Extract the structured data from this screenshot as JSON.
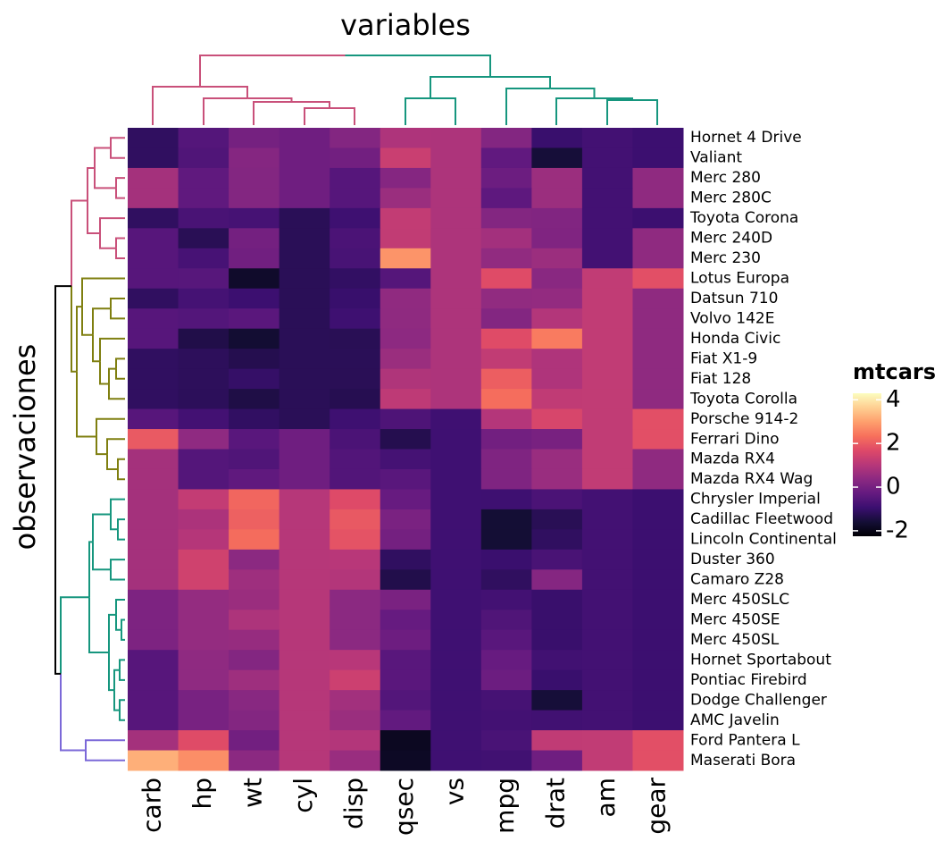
{
  "chart_data": {
    "type": "heatmap",
    "title": "variables",
    "y_label": "observaciones",
    "legend_title": "mtcars",
    "colormap": "magma",
    "x": [
      "carb",
      "hp",
      "wt",
      "cyl",
      "disp",
      "qsec",
      "vs",
      "mpg",
      "drat",
      "am",
      "gear"
    ],
    "y": [
      "Hornet 4 Drive",
      "Valiant",
      "Merc 280",
      "Merc 280C",
      "Toyota Corona",
      "Merc 240D",
      "Merc 230",
      "Lotus Europa",
      "Datsun 710",
      "Volvo 142E",
      "Honda Civic",
      "Fiat X1-9",
      "Fiat 128",
      "Toyota Corolla",
      "Porsche 914-2",
      "Ferrari Dino",
      "Mazda RX4",
      "Mazda RX4 Wag",
      "Chrysler Imperial",
      "Cadillac Fleetwood",
      "Lincoln Continental",
      "Duster 360",
      "Camaro Z28",
      "Merc 450SLC",
      "Merc 450SE",
      "Merc 450SL",
      "Hornet Sportabout",
      "Pontiac Firebird",
      "Dodge Challenger",
      "AMC Javelin",
      "Ford Pantera L",
      "Maserati Bora"
    ],
    "values": [
      [
        -1.12,
        -0.54,
        0.0,
        -0.1,
        0.22,
        0.89,
        0.87,
        0.22,
        -0.97,
        -0.81,
        -0.93
      ],
      [
        -1.12,
        -0.61,
        0.25,
        -0.1,
        -0.05,
        1.33,
        0.87,
        -0.33,
        -1.56,
        -0.81,
        -0.93
      ],
      [
        0.74,
        -0.35,
        0.23,
        -0.1,
        -0.51,
        0.25,
        0.87,
        -0.15,
        0.6,
        -0.81,
        0.42
      ],
      [
        0.74,
        -0.35,
        0.23,
        -0.1,
        -0.51,
        0.59,
        0.87,
        -0.38,
        0.6,
        -0.81,
        0.42
      ],
      [
        -1.12,
        -0.72,
        -0.77,
        -1.22,
        -0.89,
        1.21,
        0.87,
        0.23,
        0.19,
        -0.81,
        -0.93
      ],
      [
        -0.5,
        -1.24,
        -0.03,
        -1.22,
        -0.68,
        1.2,
        0.87,
        0.72,
        0.17,
        -0.81,
        0.42
      ],
      [
        -0.5,
        -0.75,
        -0.07,
        -1.22,
        -0.73,
        2.83,
        0.87,
        0.45,
        0.6,
        -0.81,
        0.42
      ],
      [
        -0.5,
        -0.49,
        -1.74,
        -1.22,
        -1.09,
        -0.53,
        0.87,
        1.71,
        0.32,
        1.19,
        1.78
      ],
      [
        -1.12,
        -0.78,
        -0.92,
        -1.22,
        -0.99,
        0.43,
        0.87,
        0.45,
        0.47,
        1.19,
        0.42
      ],
      [
        -0.5,
        -0.55,
        -0.45,
        -1.22,
        -0.89,
        0.42,
        0.87,
        0.22,
        0.96,
        1.19,
        0.42
      ],
      [
        -0.5,
        -1.38,
        -1.64,
        -1.22,
        -1.25,
        0.38,
        0.87,
        1.71,
        2.49,
        1.19,
        0.42
      ],
      [
        -1.12,
        -1.18,
        -1.31,
        -1.22,
        -1.22,
        0.59,
        0.87,
        1.2,
        0.9,
        1.19,
        0.42
      ],
      [
        -1.12,
        -1.18,
        -1.04,
        -1.22,
        -1.23,
        0.91,
        0.87,
        2.04,
        0.9,
        1.19,
        0.42
      ],
      [
        -1.12,
        -1.19,
        -1.41,
        -1.22,
        -1.29,
        1.15,
        0.87,
        2.29,
        1.17,
        1.19,
        0.42
      ],
      [
        -0.5,
        -0.81,
        -1.1,
        -1.22,
        -0.89,
        -0.64,
        -0.87,
        0.98,
        1.56,
        1.19,
        1.78
      ],
      [
        1.97,
        0.41,
        -0.46,
        -0.1,
        -0.69,
        -1.31,
        -0.87,
        -0.06,
        0.04,
        1.19,
        1.78
      ],
      [
        0.74,
        -0.54,
        -0.61,
        -0.1,
        -0.57,
        -0.78,
        -0.87,
        0.15,
        0.57,
        1.19,
        0.42
      ],
      [
        0.74,
        -0.54,
        -0.35,
        -0.1,
        -0.57,
        -0.46,
        -0.87,
        0.15,
        0.57,
        1.19,
        0.42
      ],
      [
        0.74,
        1.22,
        2.17,
        1.01,
        1.69,
        -0.24,
        -0.87,
        -0.89,
        -0.69,
        -0.81,
        -0.93
      ],
      [
        0.74,
        0.85,
        2.08,
        1.01,
        1.95,
        0.07,
        -0.87,
        -1.61,
        -1.25,
        -0.81,
        -0.93
      ],
      [
        0.74,
        1.0,
        2.26,
        1.01,
        1.85,
        -0.02,
        -0.87,
        -1.61,
        -1.12,
        -0.81,
        -0.93
      ],
      [
        0.74,
        1.43,
        0.36,
        1.01,
        1.04,
        -1.12,
        -0.87,
        -0.96,
        -0.72,
        -0.81,
        -0.93
      ],
      [
        0.74,
        1.43,
        0.64,
        1.01,
        0.96,
        -1.36,
        -0.87,
        -1.13,
        0.25,
        -0.81,
        -0.93
      ],
      [
        0.12,
        0.49,
        0.58,
        1.01,
        0.36,
        0.08,
        -0.87,
        -0.81,
        -0.98,
        -0.81,
        -0.93
      ],
      [
        0.12,
        0.49,
        0.87,
        1.01,
        0.36,
        -0.25,
        -0.87,
        -0.61,
        -0.98,
        -0.81,
        -0.93
      ],
      [
        0.12,
        0.49,
        0.52,
        1.01,
        0.36,
        -0.14,
        -0.87,
        -0.46,
        -0.98,
        -0.81,
        -0.93
      ],
      [
        -0.5,
        0.41,
        0.23,
        1.01,
        1.04,
        -0.46,
        -0.87,
        -0.23,
        -0.84,
        -0.81,
        -0.93
      ],
      [
        -0.5,
        0.41,
        0.64,
        1.01,
        1.37,
        -0.45,
        -0.87,
        -0.15,
        -0.97,
        -0.81,
        -0.93
      ],
      [
        -0.5,
        0.05,
        0.31,
        1.01,
        0.7,
        -0.55,
        -0.87,
        -0.76,
        -1.56,
        -0.81,
        -0.93
      ],
      [
        -0.5,
        0.05,
        0.22,
        1.01,
        0.59,
        -0.31,
        -0.87,
        -0.81,
        -0.84,
        -0.81,
        -0.93
      ],
      [
        0.74,
        1.71,
        -0.05,
        1.01,
        0.97,
        -1.87,
        -0.87,
        -0.71,
        1.17,
        1.19,
        1.78
      ],
      [
        3.21,
        2.75,
        0.36,
        1.01,
        0.57,
        -1.82,
        -0.87,
        -0.84,
        -0.11,
        1.19,
        1.78
      ]
    ],
    "clim": [
      -2.25,
      4.3
    ],
    "cticks": [
      -2,
      0,
      2,
      4
    ]
  }
}
